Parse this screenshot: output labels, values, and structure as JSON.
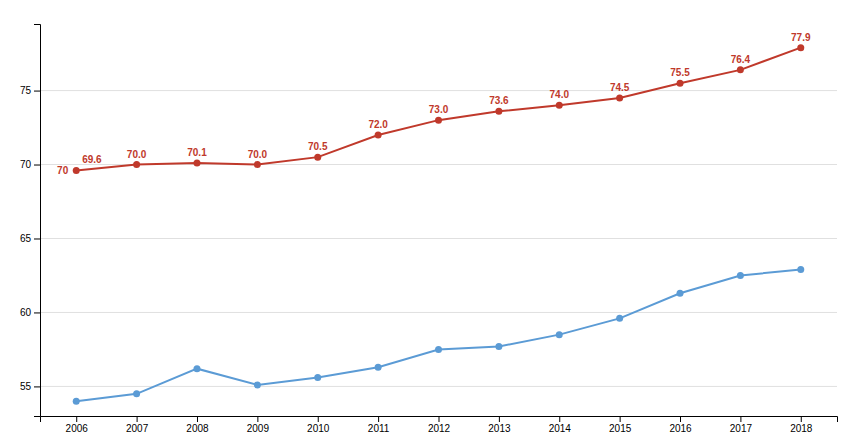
{
  "chart_data": {
    "type": "line",
    "x": [
      2006,
      2007,
      2008,
      2009,
      2010,
      2011,
      2012,
      2013,
      2014,
      2015,
      2016,
      2017,
      2018
    ],
    "series": [
      {
        "color": "#c0392b",
        "marker": "circle",
        "data_labels": true,
        "values": [
          69.6,
          70.0,
          70.1,
          70.0,
          70.5,
          72.0,
          73.0,
          73.6,
          74.0,
          74.5,
          75.5,
          76.4,
          77.9
        ],
        "value_labels": [
          "69.6",
          "70.0",
          "70.1",
          "70.0",
          "70.5",
          "72.0",
          "73.0",
          "73.6",
          "74.0",
          "74.5",
          "75.5",
          "76.4",
          "77.9"
        ]
      },
      {
        "color": "#5b9bd5",
        "marker": "circle",
        "values": [
          54.0,
          54.5,
          56.2,
          55.1,
          55.6,
          56.3,
          57.5,
          57.7,
          58.5,
          59.6,
          61.3,
          62.5,
          62.9
        ]
      }
    ],
    "annotations": [
      {
        "text": "70",
        "x": 2006,
        "y": 69.6
      }
    ],
    "xlim": [
      2005.4,
      2018.6
    ],
    "xticks": [
      2006,
      2007,
      2008,
      2009,
      2010,
      2011,
      2012,
      2013,
      2014,
      2015,
      2016,
      2017,
      2018
    ],
    "ylim": [
      53.0,
      79.5
    ],
    "yticks": [
      55,
      60,
      65,
      70,
      75
    ],
    "grid": true
  }
}
